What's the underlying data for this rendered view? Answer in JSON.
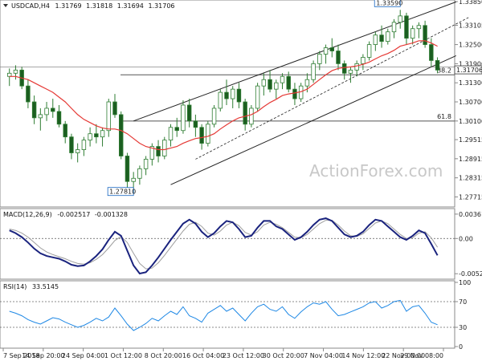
{
  "chart_data": [
    {
      "type": "candlestick",
      "title": "USDCAD,H4",
      "ohlc": [
        "1.31769",
        "1.31818",
        "1.31694",
        "1.31706"
      ],
      "last_price": "1.31706",
      "price_ticks": [
        "1.33850",
        "1.33105",
        "1.32500",
        "1.31900",
        "1.31300",
        "1.30700",
        "1.30100",
        "1.29515",
        "1.28915",
        "1.28315",
        "1.27715"
      ],
      "ylim": [
        1.2745,
        1.3385
      ],
      "x_ticks": [
        "7 Sep 2018",
        "14 Sep 20:00",
        "24 Sep 04:00",
        "1 Oct 12:00",
        "8 Oct 20:00",
        "16 Oct 04:00",
        "23 Oct 12:00",
        "30 Oct 20:00",
        "7 Nov 04:00",
        "14 Nov 12:00",
        "22 Nov 00:00",
        "29 Nov 08:00"
      ],
      "annotations": [
        {
          "text": "1.33590",
          "price": 1.3359
        },
        {
          "text": "1.27810",
          "price": 1.2781
        }
      ],
      "fib_levels": [
        {
          "label": "38.2",
          "price": 1.3155
        },
        {
          "label": "61.8",
          "price": 1.301
        }
      ],
      "channel": {
        "upper": [
          [
            20,
            1.301
          ],
          [
            72,
            1.3384
          ]
        ],
        "lower": [
          [
            26,
            1.281
          ],
          [
            72,
            1.3215
          ]
        ],
        "mid_dashed": [
          [
            30,
            1.289
          ],
          [
            74,
            1.3335
          ]
        ]
      },
      "candles": [
        [
          1.315,
          1.3175,
          1.312,
          1.316
        ],
        [
          1.316,
          1.3185,
          1.314,
          1.317
        ],
        [
          1.317,
          1.318,
          1.311,
          1.312
        ],
        [
          1.312,
          1.314,
          1.305,
          1.307
        ],
        [
          1.307,
          1.309,
          1.3,
          1.302
        ],
        [
          1.302,
          1.305,
          1.298,
          1.303
        ],
        [
          1.303,
          1.307,
          1.301,
          1.305
        ],
        [
          1.305,
          1.308,
          1.302,
          1.304
        ],
        [
          1.304,
          1.306,
          1.299,
          1.3
        ],
        [
          1.3,
          1.301,
          1.294,
          1.296
        ],
        [
          1.296,
          1.297,
          1.289,
          1.291
        ],
        [
          1.291,
          1.294,
          1.288,
          1.292
        ],
        [
          1.292,
          1.296,
          1.29,
          1.295
        ],
        [
          1.295,
          1.299,
          1.293,
          1.297
        ],
        [
          1.297,
          1.3,
          1.294,
          1.296
        ],
        [
          1.296,
          1.299,
          1.293,
          1.298
        ],
        [
          1.298,
          1.308,
          1.296,
          1.307
        ],
        [
          1.307,
          1.3095,
          1.302,
          1.303
        ],
        [
          1.303,
          1.304,
          1.289,
          1.29
        ],
        [
          1.29,
          1.291,
          1.28,
          1.282
        ],
        [
          1.282,
          1.285,
          1.2781,
          1.283
        ],
        [
          1.283,
          1.287,
          1.281,
          1.286
        ],
        [
          1.286,
          1.29,
          1.284,
          1.289
        ],
        [
          1.289,
          1.294,
          1.287,
          1.293
        ],
        [
          1.293,
          1.295,
          1.288,
          1.29
        ],
        [
          1.29,
          1.296,
          1.289,
          1.295
        ],
        [
          1.295,
          1.3,
          1.293,
          1.299
        ],
        [
          1.299,
          1.302,
          1.296,
          1.298
        ],
        [
          1.298,
          1.3075,
          1.297,
          1.306
        ],
        [
          1.306,
          1.308,
          1.299,
          1.301
        ],
        [
          1.301,
          1.303,
          1.296,
          1.299
        ],
        [
          1.299,
          1.3,
          1.292,
          1.294
        ],
        [
          1.294,
          1.301,
          1.293,
          1.3
        ],
        [
          1.3,
          1.306,
          1.299,
          1.305
        ],
        [
          1.305,
          1.311,
          1.304,
          1.31
        ],
        [
          1.31,
          1.314,
          1.306,
          1.308
        ],
        [
          1.308,
          1.312,
          1.305,
          1.311
        ],
        [
          1.311,
          1.313,
          1.305,
          1.307
        ],
        [
          1.307,
          1.308,
          1.298,
          1.3
        ],
        [
          1.3,
          1.306,
          1.299,
          1.305
        ],
        [
          1.305,
          1.313,
          1.304,
          1.312
        ],
        [
          1.312,
          1.316,
          1.309,
          1.314
        ],
        [
          1.314,
          1.317,
          1.31,
          1.311
        ],
        [
          1.311,
          1.314,
          1.308,
          1.313
        ],
        [
          1.313,
          1.316,
          1.311,
          1.315
        ],
        [
          1.315,
          1.3165,
          1.31,
          1.311
        ],
        [
          1.311,
          1.313,
          1.306,
          1.308
        ],
        [
          1.308,
          1.313,
          1.307,
          1.312
        ],
        [
          1.312,
          1.316,
          1.31,
          1.314
        ],
        [
          1.314,
          1.32,
          1.313,
          1.319
        ],
        [
          1.319,
          1.323,
          1.317,
          1.322
        ],
        [
          1.322,
          1.325,
          1.319,
          1.324
        ],
        [
          1.324,
          1.327,
          1.321,
          1.323
        ],
        [
          1.323,
          1.325,
          1.317,
          1.319
        ],
        [
          1.319,
          1.32,
          1.314,
          1.316
        ],
        [
          1.316,
          1.318,
          1.313,
          1.317
        ],
        [
          1.317,
          1.32,
          1.315,
          1.319
        ],
        [
          1.319,
          1.322,
          1.317,
          1.321
        ],
        [
          1.321,
          1.326,
          1.32,
          1.325
        ],
        [
          1.325,
          1.329,
          1.323,
          1.328
        ],
        [
          1.328,
          1.331,
          1.324,
          1.326
        ],
        [
          1.326,
          1.33,
          1.325,
          1.329
        ],
        [
          1.329,
          1.333,
          1.327,
          1.332
        ],
        [
          1.332,
          1.3359,
          1.33,
          1.334
        ],
        [
          1.334,
          1.335,
          1.325,
          1.327
        ],
        [
          1.327,
          1.331,
          1.325,
          1.33
        ],
        [
          1.33,
          1.332,
          1.327,
          1.331
        ],
        [
          1.331,
          1.3325,
          1.324,
          1.325
        ],
        [
          1.325,
          1.327,
          1.318,
          1.32
        ],
        [
          1.32,
          1.321,
          1.316,
          1.317
        ]
      ],
      "ma_red": [
        1.315,
        1.315,
        1.3145,
        1.314,
        1.313,
        1.312,
        1.311,
        1.31,
        1.3085,
        1.307,
        1.305,
        1.303,
        1.3015,
        1.3005,
        1.2995,
        1.2988,
        1.2985,
        1.2985,
        1.298,
        1.297,
        1.2955,
        1.294,
        1.293,
        1.2925,
        1.292,
        1.292,
        1.2925,
        1.293,
        1.294,
        1.2948,
        1.2955,
        1.2958,
        1.2962,
        1.297,
        1.2985,
        1.2998,
        1.301,
        1.302,
        1.3025,
        1.303,
        1.304,
        1.3055,
        1.3068,
        1.3078,
        1.309,
        1.3095,
        1.3098,
        1.3102,
        1.311,
        1.3125,
        1.314,
        1.3155,
        1.3168,
        1.3175,
        1.3178,
        1.318,
        1.3183,
        1.3188,
        1.3195,
        1.3205,
        1.3215,
        1.3222,
        1.3232,
        1.3245,
        1.325,
        1.3255,
        1.3262,
        1.3262,
        1.3255,
        1.3245
      ]
    },
    {
      "type": "line",
      "title": "MACD(12,26,9)",
      "values_text": [
        "-0.002517",
        "-0.001328"
      ],
      "y_ticks": [
        "0.003618",
        "0.00",
        "-0.005229"
      ],
      "ylim": [
        -0.0058,
        0.0042
      ],
      "series": [
        {
          "name": "MACD",
          "color": "#1a237e",
          "values": [
            0.0012,
            0.0008,
            0.0002,
            -0.0006,
            -0.0015,
            -0.0022,
            -0.0026,
            -0.0028,
            -0.003,
            -0.0034,
            -0.0039,
            -0.0041,
            -0.004,
            -0.0034,
            -0.0026,
            -0.0016,
            -0.0002,
            0.001,
            0.0004,
            -0.0018,
            -0.004,
            -0.0052,
            -0.005,
            -0.004,
            -0.0028,
            -0.0015,
            -0.0002,
            0.001,
            0.0022,
            0.0028,
            0.0022,
            0.001,
            0.0002,
            0.0008,
            0.0018,
            0.0026,
            0.0024,
            0.0014,
            0.0002,
            0.0004,
            0.0016,
            0.0026,
            0.0026,
            0.0018,
            0.0014,
            0.0006,
            -0.0002,
            0.0002,
            0.001,
            0.002,
            0.0028,
            0.003,
            0.0026,
            0.0016,
            0.0006,
            0.0002,
            0.0004,
            0.001,
            0.002,
            0.0028,
            0.0026,
            0.0018,
            0.001,
            0.0002,
            -0.0002,
            0.0004,
            0.0012,
            0.0008,
            -0.0008,
            -0.0025
          ]
        },
        {
          "name": "Signal",
          "color": "#9e9e9e",
          "values": [
            0.0014,
            0.0012,
            0.0008,
            0.0002,
            -0.0006,
            -0.0014,
            -0.002,
            -0.0024,
            -0.0027,
            -0.003,
            -0.0034,
            -0.0037,
            -0.0038,
            -0.0036,
            -0.0031,
            -0.0024,
            -0.0014,
            -0.0003,
            0.0003,
            -0.0006,
            -0.0022,
            -0.0037,
            -0.0045,
            -0.0044,
            -0.0036,
            -0.0025,
            -0.0013,
            -0.0001,
            0.0011,
            0.0021,
            0.0024,
            0.0018,
            0.0008,
            0.0005,
            0.0011,
            0.002,
            0.0024,
            0.0019,
            0.0009,
            0.0005,
            0.001,
            0.002,
            0.0024,
            0.0021,
            0.0016,
            0.0009,
            0.0002,
            0.0001,
            0.0006,
            0.0014,
            0.0022,
            0.0027,
            0.0027,
            0.002,
            0.0011,
            0.0004,
            0.0003,
            0.0007,
            0.0015,
            0.0023,
            0.0026,
            0.0022,
            0.0014,
            0.0006,
            0.0,
            0.0001,
            0.0008,
            0.001,
            0.0001,
            -0.0013
          ]
        }
      ]
    },
    {
      "type": "line",
      "title": "RSI(14)",
      "values_text": [
        "33.5145"
      ],
      "y_ticks": [
        "100",
        "70",
        "30",
        "0"
      ],
      "ylim": [
        0,
        100
      ],
      "levels": [
        70,
        30
      ],
      "series": [
        {
          "name": "RSI",
          "color": "#1e88e5",
          "values": [
            55,
            52,
            48,
            42,
            38,
            35,
            40,
            45,
            43,
            38,
            34,
            30,
            33,
            38,
            44,
            40,
            46,
            60,
            48,
            35,
            25,
            30,
            36,
            44,
            40,
            48,
            55,
            50,
            62,
            48,
            44,
            38,
            52,
            58,
            64,
            55,
            60,
            50,
            40,
            52,
            62,
            66,
            58,
            55,
            62,
            50,
            44,
            54,
            62,
            68,
            66,
            70,
            58,
            48,
            50,
            54,
            58,
            62,
            68,
            70,
            60,
            64,
            70,
            72,
            55,
            62,
            64,
            52,
            38,
            34
          ]
        }
      ]
    }
  ],
  "watermark": "ActionForex.com"
}
